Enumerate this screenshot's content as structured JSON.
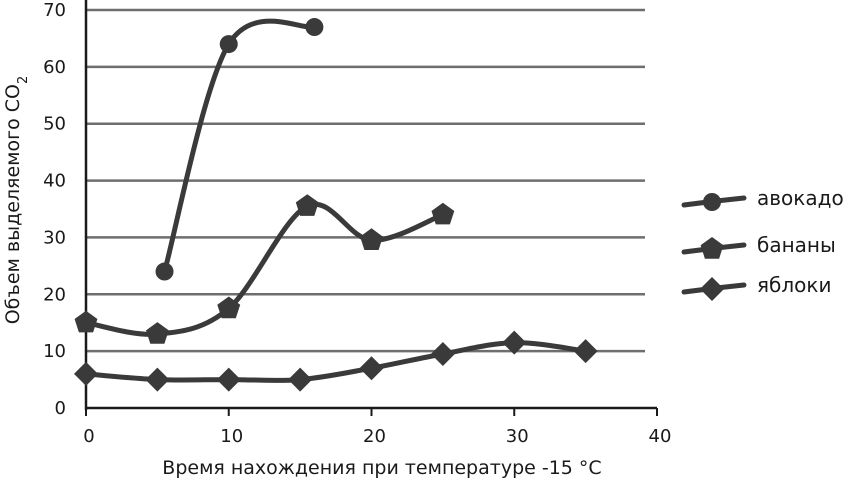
{
  "chart_data": {
    "type": "line",
    "xlabel": "Время нахождения при температуре -15 °С",
    "ylabel": "Объем выделяемого CO",
    "ylabel_subscript": "2",
    "xlim": [
      0,
      40
    ],
    "ylim": [
      0,
      70
    ],
    "x_ticks": [
      0,
      10,
      20,
      30,
      40
    ],
    "y_ticks": [
      0,
      10,
      20,
      30,
      40,
      50,
      60,
      70
    ],
    "grid": true,
    "legend_position": "right",
    "colors": {
      "line": "#3a3a3a",
      "grid": "#6e6e6e",
      "axis": "#1a1a1a"
    },
    "series": [
      {
        "name": "авокадо",
        "marker": "circle",
        "x": [
          5.5,
          10,
          16
        ],
        "y": [
          24,
          64,
          67
        ]
      },
      {
        "name": "бананы",
        "marker": "pentagon",
        "x": [
          0,
          5,
          10,
          15.5,
          20,
          25
        ],
        "y": [
          15,
          13,
          17.5,
          35.5,
          29.5,
          34
        ]
      },
      {
        "name": "яблоки",
        "marker": "diamond",
        "x": [
          0,
          5,
          10,
          15,
          20,
          25,
          30,
          35
        ],
        "y": [
          6,
          5,
          5,
          5,
          7,
          9.5,
          11.5,
          10
        ]
      }
    ]
  }
}
